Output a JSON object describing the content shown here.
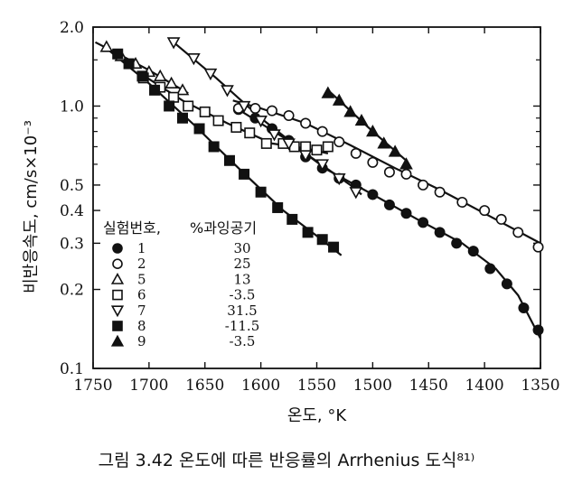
{
  "caption": "그림 3.42  온도에 따른 반응률의 Arrhenius 도식⁸¹⁾",
  "chart_data": {
    "type": "scatter",
    "title": "",
    "xlabel": "온도, °K",
    "ylabel": "비반응속도, cm/s×10⁻³",
    "x_range": [
      1750,
      1350
    ],
    "x_reversed": true,
    "y_scale": "log",
    "y_range": [
      0.1,
      2.0
    ],
    "x_ticks": [
      1750,
      1700,
      1650,
      1600,
      1550,
      1500,
      1450,
      1400,
      1350
    ],
    "y_ticks": [
      {
        "value": 2.0,
        "label": "2.0"
      },
      {
        "value": 1.0,
        "label": "1.0"
      },
      {
        "value": 0.5,
        "label": "0.5"
      },
      {
        "value": 0.4,
        "label": "0.4"
      },
      {
        "value": 0.3,
        "label": "0.3"
      },
      {
        "value": 0.2,
        "label": "0.2"
      },
      {
        "value": 0.1,
        "label": "0.1"
      }
    ],
    "legend": {
      "placement": "lower-left",
      "header_left": "실험번호,",
      "header_right": "%과잉공기",
      "entries": [
        {
          "number": "1",
          "marker": "circle-filled",
          "excess_air": "30"
        },
        {
          "number": "2",
          "marker": "circle-open",
          "excess_air": "25"
        },
        {
          "number": "5",
          "marker": "triangle-up-open",
          "excess_air": "13"
        },
        {
          "number": "6",
          "marker": "square-open",
          "excess_air": "-3.5"
        },
        {
          "number": "7",
          "marker": "triangle-down-open",
          "excess_air": "31.5"
        },
        {
          "number": "8",
          "marker": "square-filled",
          "excess_air": "-11.5"
        },
        {
          "number": "9",
          "marker": "triangle-up-filled",
          "excess_air": "-3.5"
        }
      ]
    },
    "series": [
      {
        "number": "1",
        "marker": "circle-filled",
        "points": [
          [
            1620,
            0.97
          ],
          [
            1605,
            0.9
          ],
          [
            1590,
            0.82
          ],
          [
            1575,
            0.74
          ],
          [
            1560,
            0.64
          ],
          [
            1545,
            0.58
          ],
          [
            1530,
            0.53
          ],
          [
            1515,
            0.5
          ],
          [
            1500,
            0.46
          ],
          [
            1485,
            0.42
          ],
          [
            1470,
            0.39
          ],
          [
            1455,
            0.36
          ],
          [
            1440,
            0.33
          ],
          [
            1425,
            0.3
          ],
          [
            1410,
            0.28
          ],
          [
            1395,
            0.24
          ],
          [
            1380,
            0.21
          ],
          [
            1365,
            0.17
          ],
          [
            1352,
            0.14
          ]
        ],
        "curve": [
          [
            1620,
            0.97
          ],
          [
            1580,
            0.76
          ],
          [
            1540,
            0.57
          ],
          [
            1500,
            0.46
          ],
          [
            1460,
            0.37
          ],
          [
            1420,
            0.3
          ],
          [
            1390,
            0.24
          ],
          [
            1370,
            0.19
          ],
          [
            1350,
            0.13
          ]
        ]
      },
      {
        "number": "2",
        "marker": "circle-open",
        "points": [
          [
            1620,
            0.98
          ],
          [
            1605,
            0.98
          ],
          [
            1590,
            0.96
          ],
          [
            1575,
            0.92
          ],
          [
            1560,
            0.86
          ],
          [
            1545,
            0.8
          ],
          [
            1530,
            0.73
          ],
          [
            1515,
            0.66
          ],
          [
            1500,
            0.61
          ],
          [
            1485,
            0.56
          ],
          [
            1470,
            0.55
          ],
          [
            1455,
            0.5
          ],
          [
            1440,
            0.47
          ],
          [
            1420,
            0.43
          ],
          [
            1400,
            0.4
          ],
          [
            1385,
            0.37
          ],
          [
            1370,
            0.33
          ],
          [
            1352,
            0.29
          ]
        ],
        "curve": [
          [
            1625,
            1.05
          ],
          [
            1600,
            0.98
          ],
          [
            1560,
            0.86
          ],
          [
            1520,
            0.71
          ],
          [
            1480,
            0.58
          ],
          [
            1440,
            0.48
          ],
          [
            1400,
            0.39
          ],
          [
            1350,
            0.3
          ]
        ]
      },
      {
        "number": "5",
        "marker": "triangle-up-open",
        "points": [
          [
            1738,
            1.68
          ],
          [
            1725,
            1.55
          ],
          [
            1712,
            1.45
          ],
          [
            1700,
            1.35
          ],
          [
            1690,
            1.3
          ],
          [
            1680,
            1.22
          ],
          [
            1670,
            1.15
          ]
        ],
        "curve": [
          [
            1748,
            1.75
          ],
          [
            1720,
            1.52
          ],
          [
            1700,
            1.37
          ],
          [
            1680,
            1.22
          ],
          [
            1665,
            1.12
          ]
        ]
      },
      {
        "number": "6",
        "marker": "square-open",
        "points": [
          [
            1705,
            1.28
          ],
          [
            1690,
            1.18
          ],
          [
            1678,
            1.08
          ],
          [
            1665,
            1.0
          ],
          [
            1650,
            0.95
          ],
          [
            1638,
            0.88
          ],
          [
            1622,
            0.83
          ],
          [
            1610,
            0.79
          ],
          [
            1595,
            0.72
          ],
          [
            1580,
            0.72
          ],
          [
            1570,
            0.7
          ],
          [
            1560,
            0.7
          ],
          [
            1550,
            0.68
          ],
          [
            1540,
            0.7
          ]
        ],
        "curve": [
          [
            1710,
            1.35
          ],
          [
            1670,
            1.05
          ],
          [
            1630,
            0.86
          ],
          [
            1590,
            0.72
          ],
          [
            1560,
            0.69
          ],
          [
            1540,
            0.66
          ]
        ]
      },
      {
        "number": "7",
        "marker": "triangle-down-open",
        "points": [
          [
            1678,
            1.75
          ],
          [
            1660,
            1.52
          ],
          [
            1645,
            1.33
          ],
          [
            1630,
            1.15
          ],
          [
            1615,
            1.0
          ],
          [
            1600,
            0.88
          ],
          [
            1588,
            0.78
          ],
          [
            1575,
            0.72
          ],
          [
            1560,
            0.65
          ],
          [
            1545,
            0.6
          ],
          [
            1530,
            0.53
          ],
          [
            1515,
            0.47
          ]
        ],
        "curve": [
          [
            1678,
            1.75
          ],
          [
            1640,
            1.28
          ],
          [
            1600,
            0.9
          ],
          [
            1560,
            0.66
          ],
          [
            1520,
            0.5
          ],
          [
            1510,
            0.46
          ]
        ]
      },
      {
        "number": "8",
        "marker": "square-filled",
        "points": [
          [
            1728,
            1.58
          ],
          [
            1718,
            1.45
          ],
          [
            1706,
            1.3
          ],
          [
            1695,
            1.15
          ],
          [
            1682,
            1.0
          ],
          [
            1670,
            0.9
          ],
          [
            1655,
            0.82
          ],
          [
            1642,
            0.7
          ],
          [
            1628,
            0.62
          ],
          [
            1615,
            0.55
          ],
          [
            1600,
            0.47
          ],
          [
            1585,
            0.41
          ],
          [
            1572,
            0.37
          ],
          [
            1558,
            0.33
          ],
          [
            1545,
            0.31
          ],
          [
            1535,
            0.29
          ]
        ],
        "curve": [
          [
            1735,
            1.62
          ],
          [
            1700,
            1.22
          ],
          [
            1660,
            0.85
          ],
          [
            1620,
            0.58
          ],
          [
            1580,
            0.4
          ],
          [
            1550,
            0.32
          ],
          [
            1528,
            0.27
          ]
        ]
      },
      {
        "number": "9",
        "marker": "triangle-up-filled",
        "points": [
          [
            1540,
            1.12
          ],
          [
            1530,
            1.05
          ],
          [
            1520,
            0.95
          ],
          [
            1510,
            0.88
          ],
          [
            1500,
            0.8
          ],
          [
            1490,
            0.72
          ],
          [
            1480,
            0.67
          ],
          [
            1470,
            0.6
          ]
        ],
        "curve": [
          [
            1540,
            1.15
          ],
          [
            1520,
            0.96
          ],
          [
            1500,
            0.8
          ],
          [
            1470,
            0.62
          ]
        ]
      }
    ]
  }
}
